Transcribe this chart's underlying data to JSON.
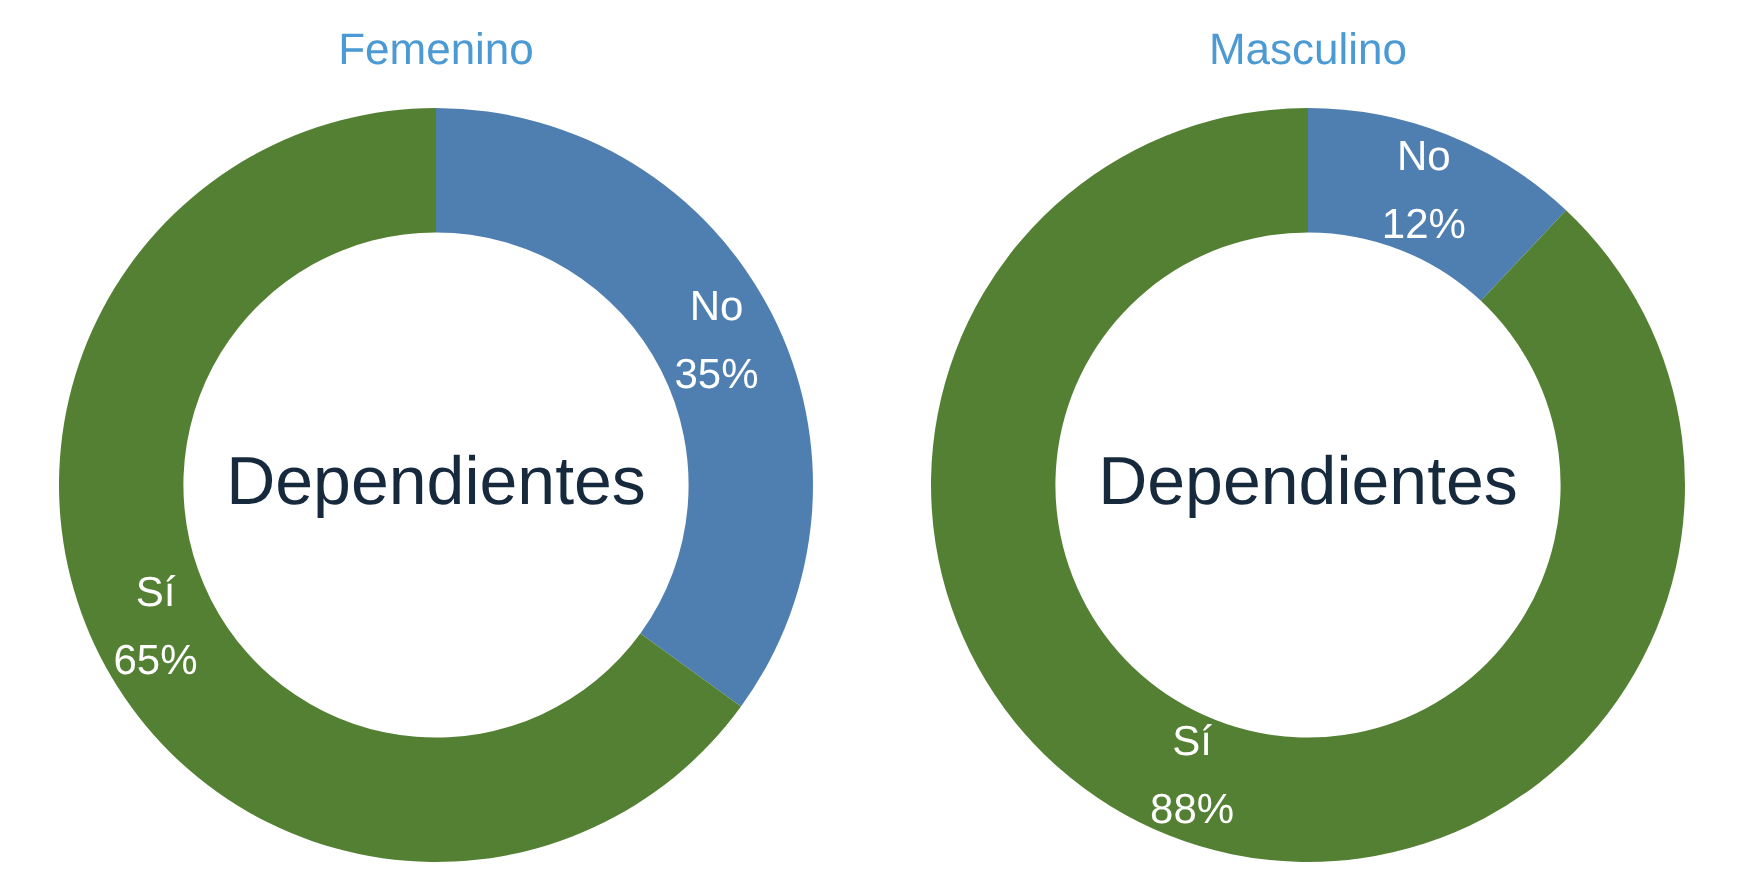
{
  "chart_data": [
    {
      "type": "donut",
      "title": "Femenino",
      "categories": [
        "No",
        "Sí"
      ],
      "values": [
        35,
        65
      ],
      "colors": [
        "#4e7fb0",
        "#548033"
      ],
      "value_labels": [
        "35%",
        "65%"
      ],
      "annotations": [
        "Dependientes"
      ],
      "legend": false
    },
    {
      "type": "donut",
      "title": "Masculino",
      "categories": [
        "No",
        "Sí"
      ],
      "values": [
        12,
        88
      ],
      "colors": [
        "#4e7fb0",
        "#548033"
      ],
      "value_labels": [
        "12%",
        "88%"
      ],
      "annotations": [
        "Dependientes"
      ],
      "legend": false
    }
  ]
}
